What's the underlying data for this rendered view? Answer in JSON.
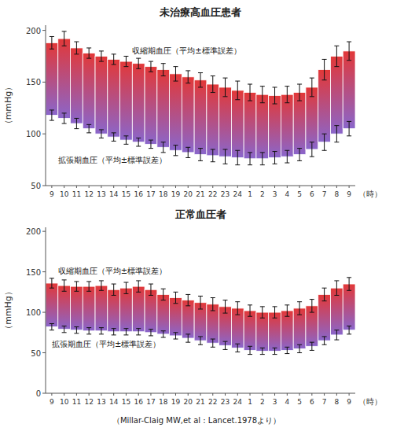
{
  "chart_data": [
    {
      "type": "range_bar",
      "title": "未治療高血圧患者",
      "categories": [
        "9",
        "10",
        "11",
        "12",
        "13",
        "14",
        "15",
        "16",
        "17",
        "18",
        "19",
        "20",
        "21",
        "22",
        "23",
        "24",
        "1",
        "2",
        "3",
        "4",
        "5",
        "6",
        "7",
        "8",
        "9"
      ],
      "series": [
        {
          "values": [
            188,
            192,
            183,
            178,
            175,
            172,
            170,
            168,
            165,
            162,
            158,
            155,
            152,
            148,
            145,
            142,
            140,
            138,
            137,
            138,
            140,
            145,
            162,
            175,
            180
          ],
          "errors": [
            6,
            7,
            6,
            5,
            5,
            5,
            5,
            5,
            5,
            6,
            7,
            6,
            7,
            8,
            9,
            9,
            8,
            8,
            8,
            8,
            8,
            9,
            10,
            10,
            9
          ]
        },
        {
          "values": [
            118,
            115,
            110,
            105,
            100,
            97,
            94,
            92,
            90,
            87,
            84,
            82,
            80,
            79,
            78,
            77,
            76,
            76,
            77,
            78,
            80,
            85,
            92,
            100,
            105
          ],
          "errors": [
            5,
            5,
            5,
            4,
            4,
            4,
            4,
            4,
            4,
            5,
            5,
            5,
            6,
            6,
            7,
            7,
            6,
            6,
            6,
            6,
            6,
            7,
            8,
            8,
            7
          ]
        }
      ],
      "annotations": [
        "収縮期血圧（平均±標準誤差）",
        "拡張期血圧（平均±標準誤差）"
      ],
      "x_label": "（時）",
      "y_label": "（mmHg）",
      "ylim": [
        50,
        205
      ],
      "yticks": [
        50,
        100,
        150,
        200
      ],
      "grid": false
    },
    {
      "type": "range_bar",
      "title": "正常血圧者",
      "categories": [
        "9",
        "10",
        "11",
        "12",
        "13",
        "14",
        "15",
        "16",
        "17",
        "18",
        "19",
        "20",
        "21",
        "22",
        "23",
        "24",
        "1",
        "2",
        "3",
        "4",
        "5",
        "6",
        "7",
        "8",
        "9"
      ],
      "series": [
        {
          "values": [
            136,
            133,
            132,
            132,
            133,
            128,
            130,
            132,
            128,
            122,
            118,
            115,
            112,
            110,
            107,
            105,
            102,
            100,
            100,
            102,
            105,
            108,
            122,
            130,
            135
          ],
          "errors": [
            6,
            7,
            6,
            6,
            6,
            7,
            7,
            7,
            7,
            7,
            7,
            7,
            8,
            8,
            8,
            8,
            7,
            7,
            7,
            7,
            8,
            8,
            8,
            9,
            8
          ]
        },
        {
          "values": [
            82,
            79,
            78,
            77,
            77,
            76,
            76,
            76,
            75,
            73,
            71,
            68,
            65,
            62,
            59,
            56,
            53,
            52,
            52,
            53,
            55,
            58,
            65,
            72,
            78
          ],
          "errors": [
            4,
            4,
            4,
            4,
            4,
            4,
            4,
            4,
            4,
            4,
            4,
            5,
            5,
            5,
            5,
            5,
            5,
            4,
            4,
            4,
            5,
            5,
            5,
            6,
            5
          ]
        }
      ],
      "annotations": [
        "収縮期血圧（平均±標準誤差）",
        "拡張期血圧（平均±標準誤差）"
      ],
      "x_label": "（時）",
      "y_label": "（mmHg）",
      "ylim": [
        0,
        205
      ],
      "yticks": [
        0,
        50,
        100,
        150,
        200
      ],
      "grid": false
    }
  ],
  "source": "（Millar-Claig MW,et al : Lancet.1978より）"
}
